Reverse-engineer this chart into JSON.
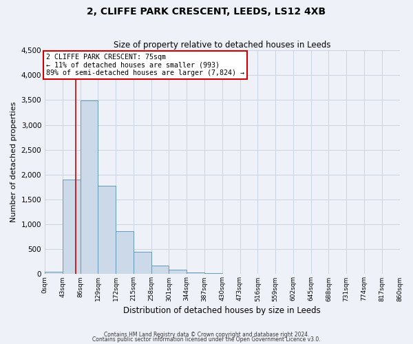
{
  "title": "2, CLIFFE PARK CRESCENT, LEEDS, LS12 4XB",
  "subtitle": "Size of property relative to detached houses in Leeds",
  "xlabel": "Distribution of detached houses by size in Leeds",
  "ylabel": "Number of detached properties",
  "bar_color": "#ccd9e8",
  "bar_edge_color": "#6699bb",
  "bin_labels": [
    "0sqm",
    "43sqm",
    "86sqm",
    "129sqm",
    "172sqm",
    "215sqm",
    "258sqm",
    "301sqm",
    "344sqm",
    "387sqm",
    "430sqm",
    "473sqm",
    "516sqm",
    "559sqm",
    "602sqm",
    "645sqm",
    "688sqm",
    "731sqm",
    "774sqm",
    "817sqm",
    "860sqm"
  ],
  "bar_values": [
    50,
    1900,
    3490,
    1780,
    860,
    450,
    170,
    90,
    40,
    15,
    5,
    0,
    0,
    0,
    0,
    0,
    0,
    0,
    0,
    0
  ],
  "bin_edges": [
    0,
    43,
    86,
    129,
    172,
    215,
    258,
    301,
    344,
    387,
    430,
    473,
    516,
    559,
    602,
    645,
    688,
    731,
    774,
    817,
    860
  ],
  "ylim": [
    0,
    4500
  ],
  "yticks": [
    0,
    500,
    1000,
    1500,
    2000,
    2500,
    3000,
    3500,
    4000,
    4500
  ],
  "property_size": 75,
  "vline_color": "#cc0000",
  "annotation_title": "2 CLIFFE PARK CRESCENT: 75sqm",
  "annotation_line1": "← 11% of detached houses are smaller (993)",
  "annotation_line2": "89% of semi-detached houses are larger (7,824) →",
  "annotation_box_color": "#ffffff",
  "annotation_box_edge": "#cc0000",
  "grid_color": "#c8d4e4",
  "background_color": "#eef2f8",
  "footer1": "Contains HM Land Registry data © Crown copyright and database right 2024.",
  "footer2": "Contains public sector information licensed under the Open Government Licence v3.0."
}
